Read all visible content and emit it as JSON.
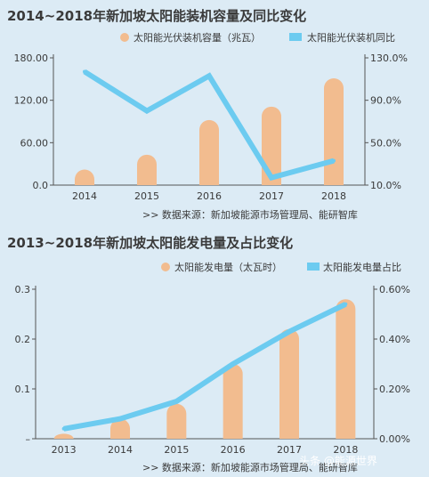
{
  "colors": {
    "background": "#dcebf5",
    "bar": "#f2bc8f",
    "line": "#6ccbf0",
    "axis": "#555555",
    "text": "#3a3a3a"
  },
  "chart_data": [
    {
      "type": "bar+line",
      "title": "2014~2018年新加坡太阳能装机容量及同比变化",
      "categories": [
        "2014",
        "2015",
        "2016",
        "2017",
        "2018"
      ],
      "series": [
        {
          "name": "太阳能光伏装机容量（兆瓦）",
          "type": "bar",
          "axis": "left",
          "values": [
            22,
            43,
            92,
            111,
            151
          ]
        },
        {
          "name": "太阳能光伏装机同比",
          "type": "line",
          "axis": "right",
          "values": [
            117,
            80,
            113,
            17,
            33
          ]
        }
      ],
      "left_axis": {
        "ticks": [
          "0.0",
          "60.00",
          "120.00",
          "180.00"
        ],
        "range": [
          0,
          180
        ]
      },
      "right_axis": {
        "ticks": [
          "10.0%",
          "50.0%",
          "90.0%",
          "130.0%"
        ],
        "range": [
          10,
          130
        ]
      },
      "source": ">>  数据来源：新加坡能源市场管理局、能研智库"
    },
    {
      "type": "bar+line",
      "title": "2013~2018年新加坡太阳能发电量及占比变化",
      "categories": [
        "2013",
        "2014",
        "2015",
        "2016",
        "2017",
        "2018"
      ],
      "series": [
        {
          "name": "太阳能发电量（太瓦时）",
          "type": "bar",
          "axis": "left",
          "values": [
            0.01,
            0.04,
            0.07,
            0.15,
            0.22,
            0.28
          ]
        },
        {
          "name": "太阳能发电量占比",
          "type": "line",
          "axis": "right",
          "values": [
            0.04,
            0.08,
            0.15,
            0.3,
            0.43,
            0.54
          ]
        }
      ],
      "left_axis": {
        "ticks": [
          "–",
          "0.1",
          "0.2",
          "0.3"
        ],
        "range": [
          0,
          0.3
        ]
      },
      "right_axis": {
        "ticks": [
          "0.00%",
          "0.20%",
          "0.40%",
          "0.60%"
        ],
        "range": [
          0,
          0.6
        ]
      },
      "source": ">>  数据来源：新加坡能源市场管理局、能研智库"
    }
  ],
  "watermark": "头条 @能源世界"
}
